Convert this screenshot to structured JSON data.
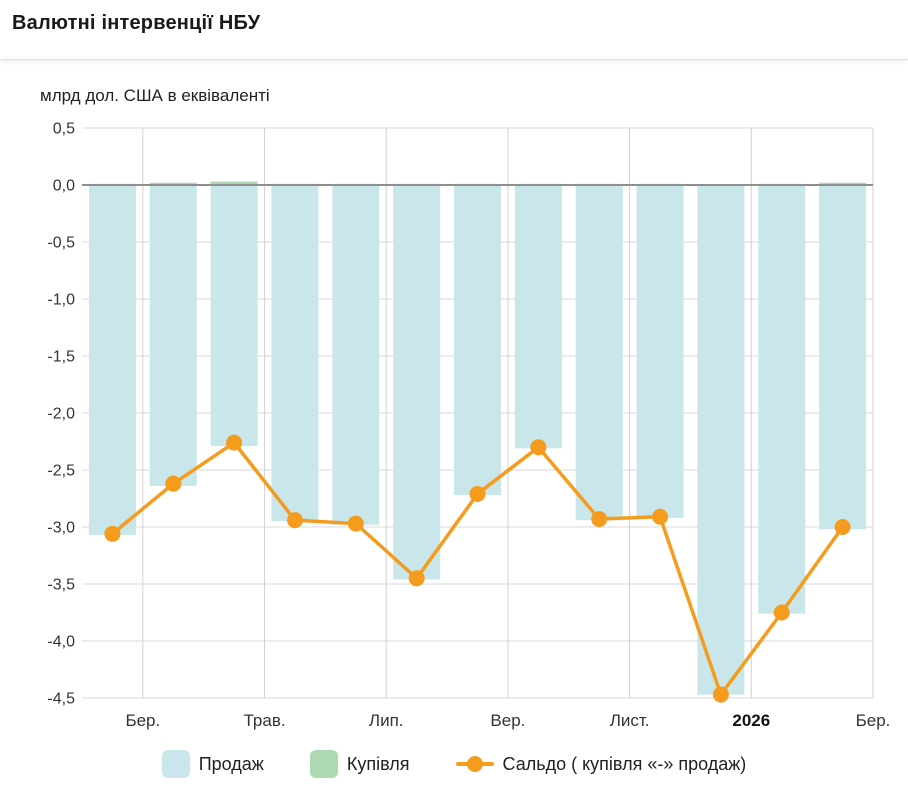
{
  "header": {
    "title": "Валютні інтервенції НБУ"
  },
  "chart": {
    "unit_label": "млрд дол. США в еквіваленті"
  },
  "chart_data": {
    "type": "combo",
    "title": "Валютні інтервенції НБУ",
    "ylabel": "млрд дол. США в еквіваленті",
    "n_points": 13,
    "ylim": [
      -4.5,
      0.5
    ],
    "grid": {
      "h_color": "#d9d9d9",
      "v_color": "#d2d2d2",
      "zero_color": "#8f8f8f"
    },
    "y_ticks": [
      {
        "label": "0,5",
        "value": 0.5
      },
      {
        "label": "0,0",
        "value": 0.0
      },
      {
        "label": "-0,5",
        "value": -0.5
      },
      {
        "label": "-1,0",
        "value": -1.0
      },
      {
        "label": "-1,5",
        "value": -1.5
      },
      {
        "label": "-2,0",
        "value": -2.0
      },
      {
        "label": "-2,5",
        "value": -2.5
      },
      {
        "label": "-3,0",
        "value": -3.0
      },
      {
        "label": "-3,5",
        "value": -3.5
      },
      {
        "label": "-4,0",
        "value": -4.0
      },
      {
        "label": "-4,5",
        "value": -4.5
      }
    ],
    "x_ticks": [
      {
        "label": "Бер.",
        "position": 1,
        "bold": false
      },
      {
        "label": "Трав.",
        "position": 3,
        "bold": false
      },
      {
        "label": "Лип.",
        "position": 5,
        "bold": false
      },
      {
        "label": "Вер.",
        "position": 7,
        "bold": false
      },
      {
        "label": "Лист.",
        "position": 9,
        "bold": false
      },
      {
        "label": "2026",
        "position": 11,
        "bold": true
      },
      {
        "label": "Бер.",
        "position": 13,
        "bold": false
      }
    ],
    "series": [
      {
        "name": "Продаж",
        "type": "bar",
        "color": "#c9e7ea",
        "values": [
          -3.07,
          -2.64,
          -2.29,
          -2.95,
          -2.98,
          -3.46,
          -2.72,
          -2.31,
          -2.94,
          -2.92,
          -4.47,
          -3.76,
          -3.02
        ]
      },
      {
        "name": "Купівля",
        "type": "bar",
        "color": "#aed9b0",
        "values": [
          0.01,
          0.02,
          0.03,
          0.01,
          0.01,
          0.01,
          0.01,
          0.01,
          0.01,
          0.01,
          0.0,
          0.01,
          0.02
        ]
      },
      {
        "name": "Сальдо ( купівля «-» продаж)",
        "type": "line",
        "color": "#f59c1e",
        "values": [
          -3.06,
          -2.62,
          -2.26,
          -2.94,
          -2.97,
          -3.45,
          -2.71,
          -2.3,
          -2.93,
          -2.91,
          -4.47,
          -3.75,
          -3.0
        ]
      }
    ]
  }
}
